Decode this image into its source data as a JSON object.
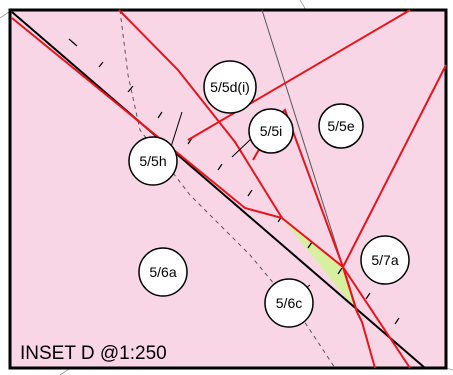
{
  "inset": {
    "title": "INSET D @1:250"
  },
  "lots": [
    {
      "id": "5/5d(i)"
    },
    {
      "id": "5/5i"
    },
    {
      "id": "5/5e"
    },
    {
      "id": "5/5h"
    },
    {
      "id": "5/6a"
    },
    {
      "id": "5/7a"
    },
    {
      "id": "5/6c"
    }
  ],
  "colors": {
    "background": "#f9d6e6",
    "frame": "#000000",
    "boundary": "#e8141c",
    "highlight": "#d6f0a0",
    "label_fill": "#ffffff"
  }
}
